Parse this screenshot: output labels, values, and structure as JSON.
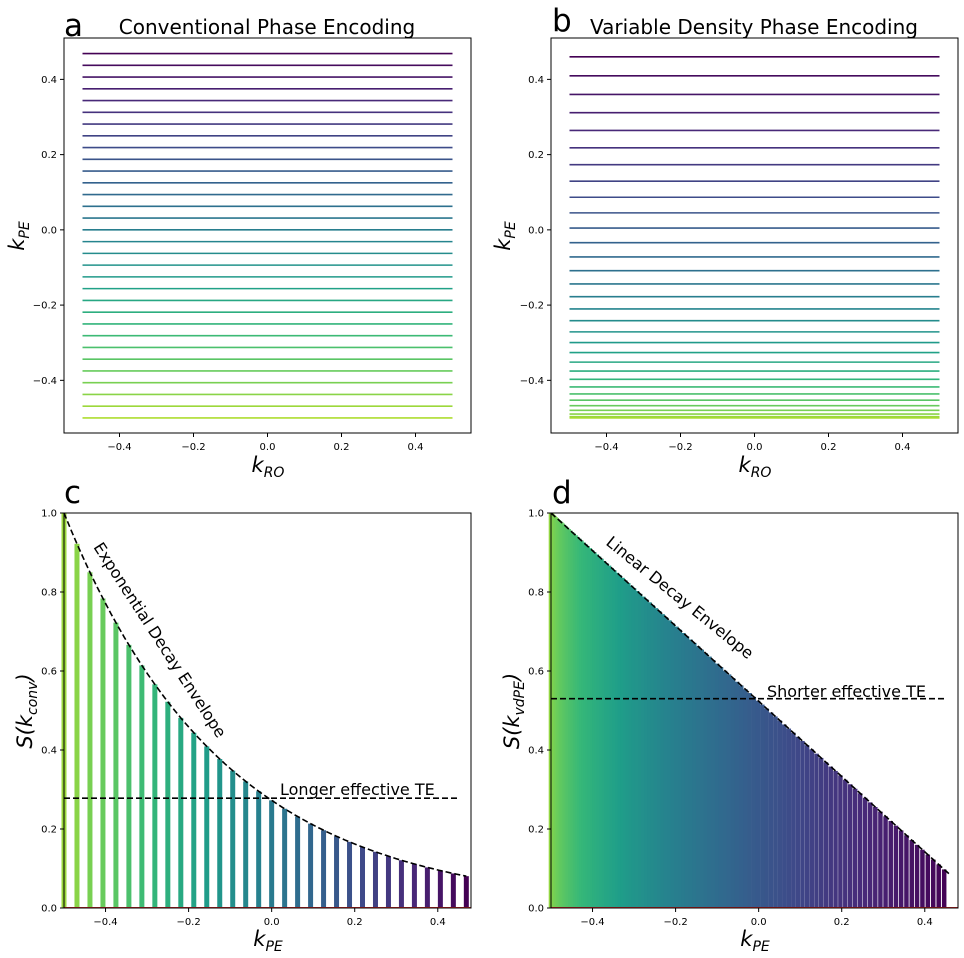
{
  "chart_data": [
    {
      "panel": "a",
      "type": "line",
      "title": "Conventional Phase Encoding",
      "xlabel": "k_RO",
      "ylabel": "k_PE",
      "xlim": [
        -0.55,
        0.55
      ],
      "ylim": [
        -0.54,
        0.51
      ],
      "x_range": [
        -0.5,
        0.5
      ],
      "lines": {
        "count": 32,
        "k_min": -0.5,
        "k_max": 0.46875,
        "spacing": "uniform"
      },
      "xticks": [
        -0.4,
        -0.2,
        0.0,
        0.2,
        0.4
      ],
      "xtick_labels": [
        "−0.4",
        "−0.2",
        "0.0",
        "0.2",
        "0.4"
      ],
      "yticks": [
        -0.4,
        -0.2,
        0.0,
        0.2,
        0.4
      ],
      "ytick_labels": [
        "−0.4",
        "−0.2",
        "0.0",
        "0.2",
        "0.4"
      ]
    },
    {
      "panel": "b",
      "type": "line",
      "title": "Variable Density Phase Encoding",
      "xlabel": "k_RO",
      "ylabel": "k_PE",
      "xlim": [
        -0.55,
        0.55
      ],
      "ylim": [
        -0.54,
        0.51
      ],
      "x_range": [
        -0.5,
        0.5
      ],
      "lines": {
        "count": 32,
        "k_min": -0.5,
        "k_max": 0.46,
        "spacing": "variable",
        "exponent": 1.65
      },
      "xticks": [
        -0.4,
        -0.2,
        0.0,
        0.2,
        0.4
      ],
      "xtick_labels": [
        "−0.4",
        "−0.2",
        "0.0",
        "0.2",
        "0.4"
      ],
      "yticks": [
        -0.4,
        -0.2,
        0.0,
        0.2,
        0.4
      ],
      "ytick_labels": [
        "−0.4",
        "−0.2",
        "0.0",
        "0.2",
        "0.4"
      ]
    },
    {
      "panel": "c",
      "type": "bar",
      "xlabel": "k_PE",
      "ylabel": "S(k_conv)",
      "xlim": [
        -0.5,
        0.48
      ],
      "ylim": [
        0,
        1.0
      ],
      "bars": {
        "count": 32,
        "k_min": -0.5,
        "k_max": 0.46875,
        "spacing": "uniform",
        "decay": "exponential",
        "decay_rate": 2.6
      },
      "effective_te_level": 0.278,
      "annotations": {
        "envelope": "Exponential Decay Envelope",
        "te": "Longer effective TE"
      },
      "xticks": [
        -0.4,
        -0.2,
        0.0,
        0.2,
        0.4
      ],
      "xtick_labels": [
        "−0.4",
        "−0.2",
        "0.0",
        "0.2",
        "0.4"
      ],
      "yticks": [
        0.0,
        0.2,
        0.4,
        0.6,
        0.8,
        1.0
      ],
      "ytick_labels": [
        "0.0",
        "0.2",
        "0.4",
        "0.6",
        "0.8",
        "1.0"
      ]
    },
    {
      "panel": "d",
      "type": "bar",
      "xlabel": "k_PE",
      "ylabel": "S(k_vdPE)",
      "xlim": [
        -0.5,
        0.48
      ],
      "ylim": [
        0,
        1.0
      ],
      "bars": {
        "count": 120,
        "k_min": -0.5,
        "k_max": 0.46,
        "spacing": "variable",
        "exponent": 1.65,
        "decay": "linear"
      },
      "effective_te_level": 0.53,
      "annotations": {
        "envelope": "Linear Decay Envelope",
        "te": "Shorter effective TE"
      },
      "xticks": [
        -0.4,
        -0.2,
        0.0,
        0.2,
        0.4
      ],
      "xtick_labels": [
        "−0.4",
        "−0.2",
        "0.0",
        "0.2",
        "0.4"
      ],
      "yticks": [
        0.0,
        0.2,
        0.4,
        0.6,
        0.8,
        1.0
      ],
      "ytick_labels": [
        "0.0",
        "0.2",
        "0.4",
        "0.6",
        "0.8",
        "1.0"
      ]
    }
  ],
  "panel_letters": [
    "a",
    "b",
    "c",
    "d"
  ],
  "axis_text": {
    "k": "k",
    "RO": "RO",
    "PE": "PE",
    "S": "S(k",
    "conv": "conv",
    "vdPE": "vdPE",
    "close": ")"
  },
  "colors": {
    "envelope": "#000000",
    "baseline": "#d62728"
  }
}
